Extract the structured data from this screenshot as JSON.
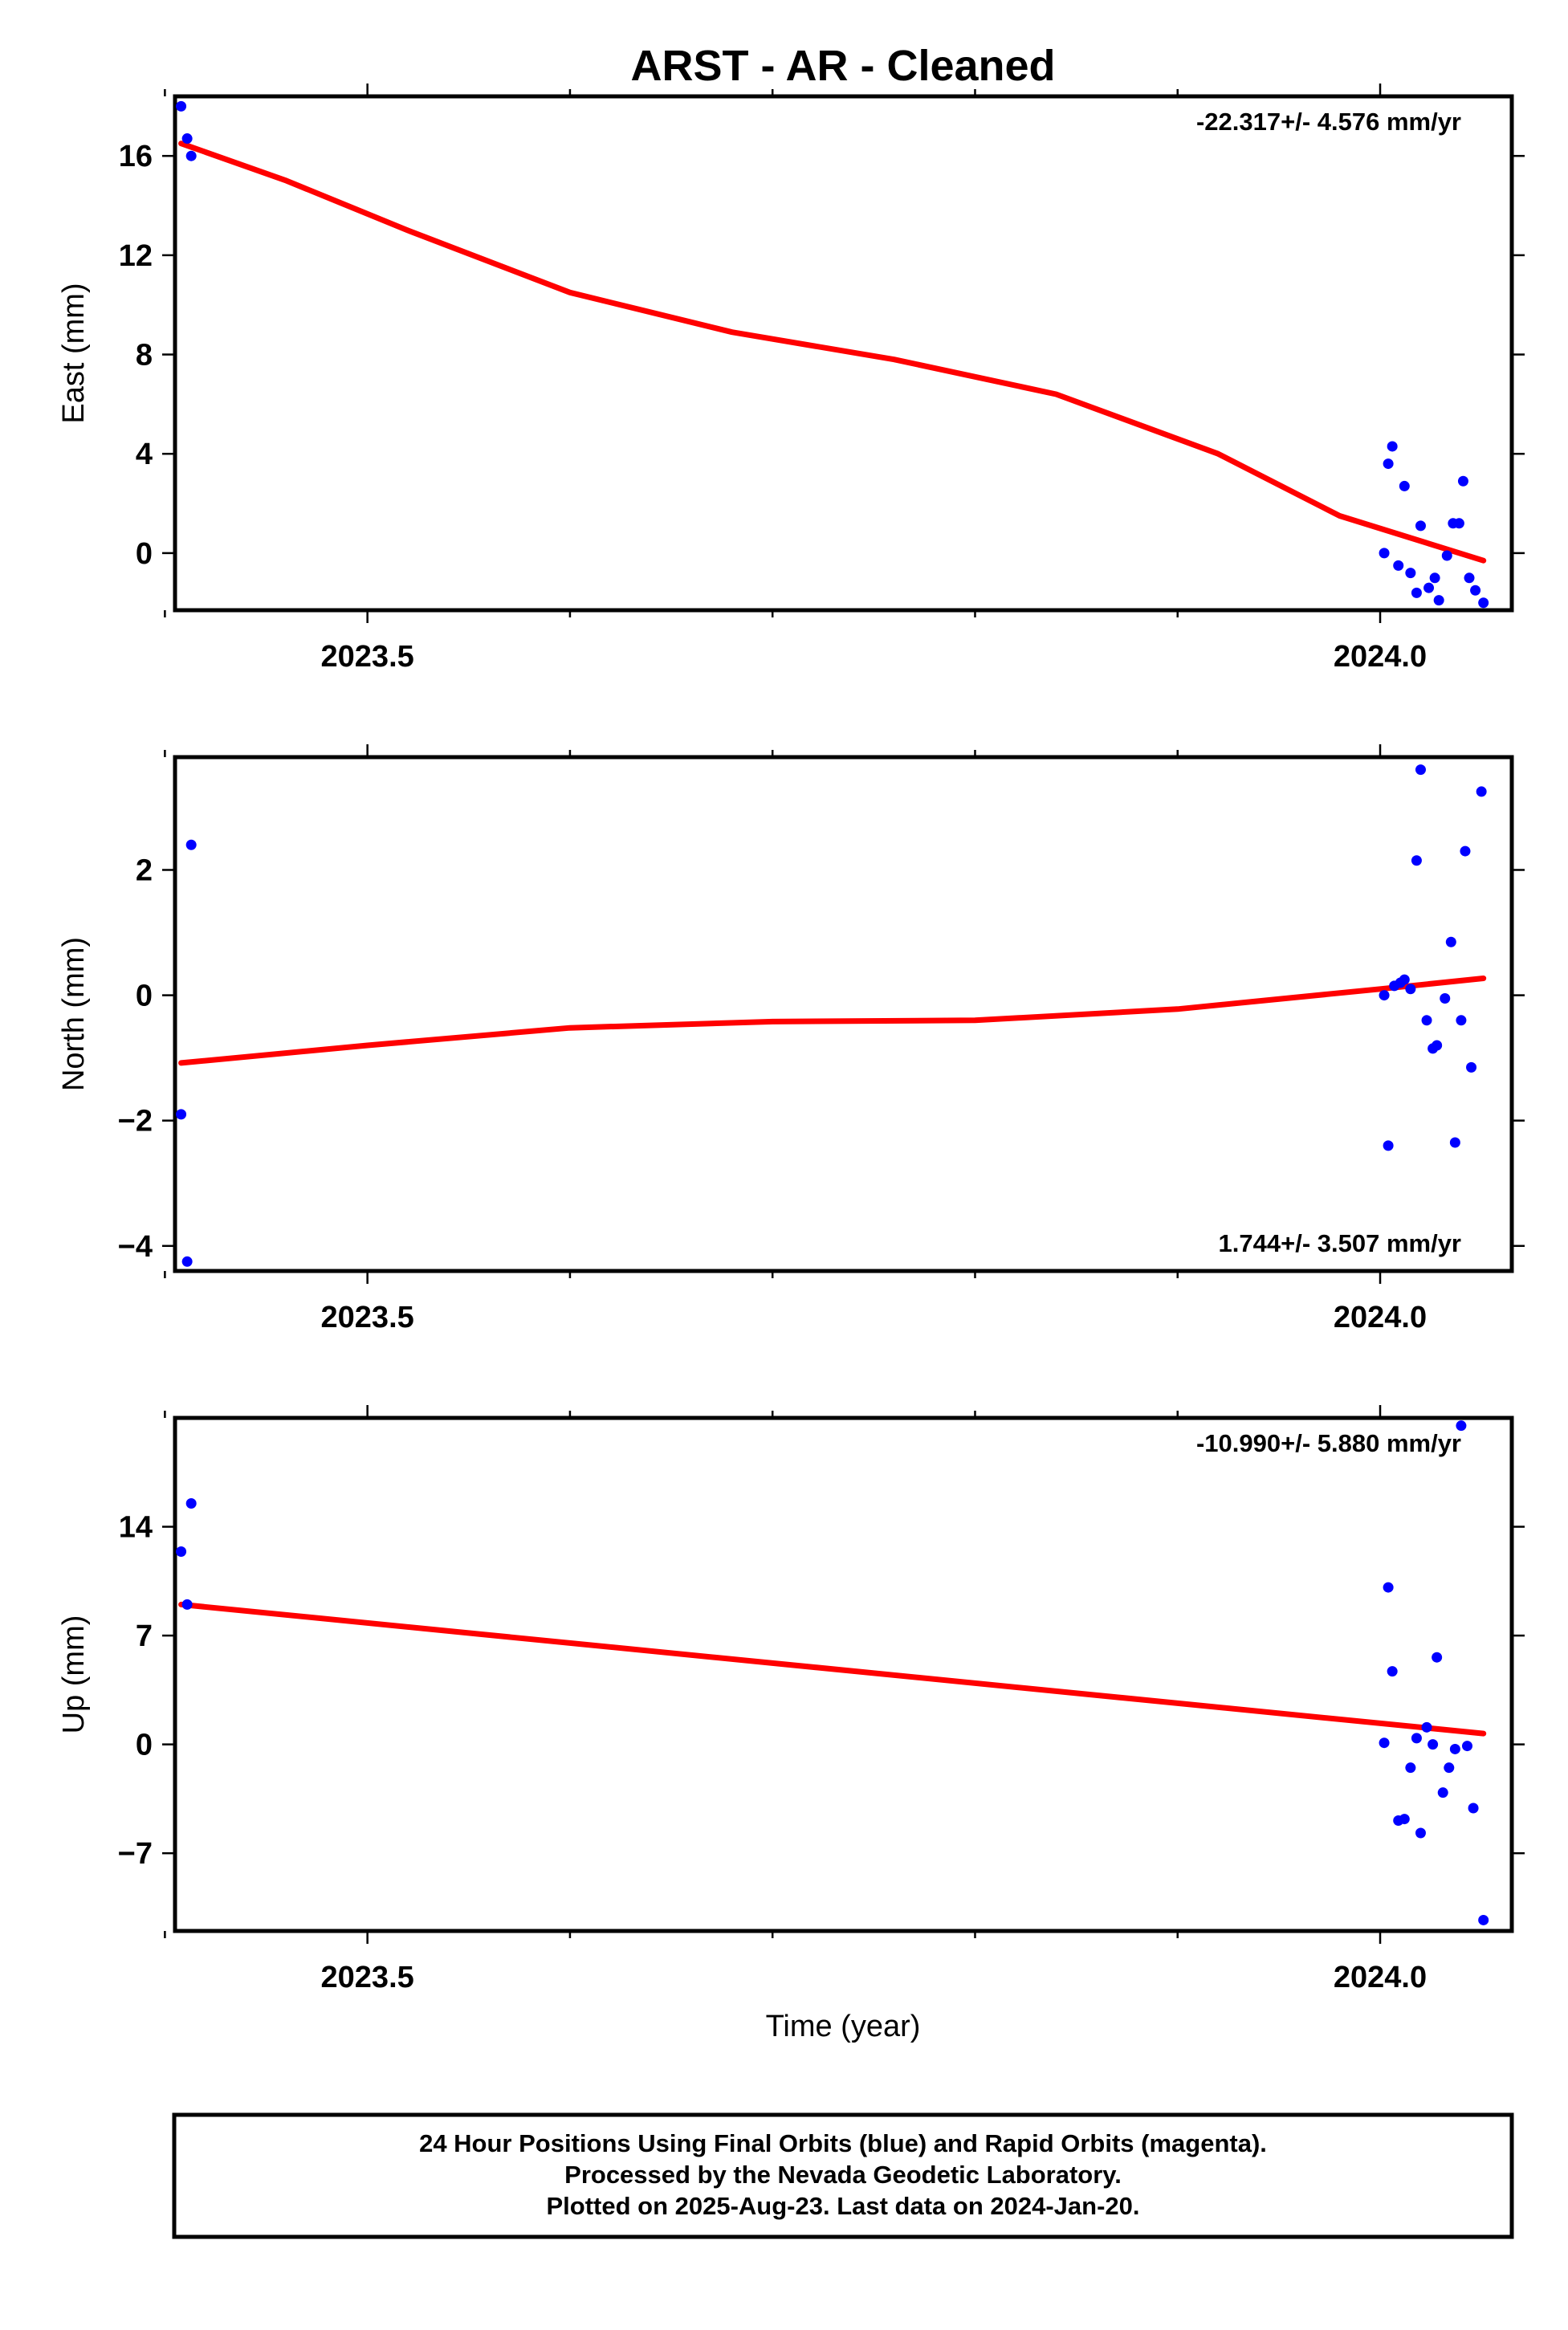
{
  "chart_data": {
    "title": "ARST  - AR - Cleaned",
    "xlabel": "Time (year)",
    "x_tick_labels": [
      "2023.5",
      "2024.0"
    ],
    "xlim": [
      2023.405,
      2024.065
    ],
    "type": "scatter",
    "colors": {
      "final_orbits": "#0000ff",
      "model": "#ff0000"
    },
    "panels": [
      {
        "name": "east",
        "ylabel": "East (mm)",
        "ylim": [
          -2.3,
          18.4
        ],
        "yticks": [
          0,
          4,
          8,
          12,
          16
        ],
        "rate_text": "-22.317+/- 4.576 mm/yr",
        "rate_position": "top-right",
        "points": [
          [
            2023.408,
            18.0
          ],
          [
            2023.411,
            16.7
          ],
          [
            2023.413,
            16.0
          ],
          [
            2024.002,
            0.0
          ],
          [
            2024.004,
            3.6
          ],
          [
            2024.006,
            4.3
          ],
          [
            2024.009,
            -0.5
          ],
          [
            2024.012,
            2.7
          ],
          [
            2024.015,
            -0.8
          ],
          [
            2024.018,
            -1.6
          ],
          [
            2024.02,
            1.1
          ],
          [
            2024.024,
            -1.4
          ],
          [
            2024.027,
            -1.0
          ],
          [
            2024.029,
            -1.9
          ],
          [
            2024.033,
            -0.1
          ],
          [
            2024.036,
            1.2
          ],
          [
            2024.039,
            1.2
          ],
          [
            2024.041,
            2.9
          ],
          [
            2024.044,
            -1.0
          ],
          [
            2024.047,
            -1.5
          ],
          [
            2024.051,
            -2.0
          ]
        ],
        "model": [
          [
            2023.408,
            16.5
          ],
          [
            2023.46,
            15.0
          ],
          [
            2023.52,
            13.0
          ],
          [
            2023.6,
            10.5
          ],
          [
            2023.68,
            8.9
          ],
          [
            2023.76,
            7.8
          ],
          [
            2023.84,
            6.4
          ],
          [
            2023.92,
            4.0
          ],
          [
            2023.98,
            1.5
          ],
          [
            2024.051,
            -0.3
          ]
        ]
      },
      {
        "name": "north",
        "ylabel": "North (mm)",
        "ylim": [
          -4.4,
          3.8
        ],
        "yticks": [
          -4,
          -2,
          0,
          2
        ],
        "rate_text": "1.744+/- 3.507 mm/yr",
        "rate_position": "bottom-right",
        "points": [
          [
            2023.408,
            -1.9
          ],
          [
            2023.411,
            -4.25
          ],
          [
            2023.413,
            2.4
          ],
          [
            2024.002,
            0.0
          ],
          [
            2024.004,
            -2.4
          ],
          [
            2024.007,
            0.15
          ],
          [
            2024.01,
            0.2
          ],
          [
            2024.012,
            0.25
          ],
          [
            2024.015,
            0.1
          ],
          [
            2024.018,
            2.15
          ],
          [
            2024.02,
            3.6
          ],
          [
            2024.023,
            -0.4
          ],
          [
            2024.026,
            -0.85
          ],
          [
            2024.028,
            -0.8
          ],
          [
            2024.032,
            -0.05
          ],
          [
            2024.035,
            0.85
          ],
          [
            2024.037,
            -2.35
          ],
          [
            2024.04,
            -0.4
          ],
          [
            2024.042,
            2.3
          ],
          [
            2024.045,
            -1.15
          ],
          [
            2024.05,
            3.25
          ]
        ],
        "model": [
          [
            2023.408,
            -1.08
          ],
          [
            2023.5,
            -0.8
          ],
          [
            2023.6,
            -0.52
          ],
          [
            2023.7,
            -0.42
          ],
          [
            2023.8,
            -0.4
          ],
          [
            2023.9,
            -0.22
          ],
          [
            2024.0,
            0.1
          ],
          [
            2024.051,
            0.27
          ]
        ]
      },
      {
        "name": "up",
        "ylabel": "Up (mm)",
        "ylim": [
          -12.0,
          21.0
        ],
        "yticks": [
          -7,
          0,
          7,
          14
        ],
        "rate_text": "-10.990+/- 5.880 mm/yr",
        "rate_position": "top-right",
        "points": [
          [
            2023.408,
            12.4
          ],
          [
            2023.411,
            9.0
          ],
          [
            2023.413,
            15.5
          ],
          [
            2024.002,
            0.1
          ],
          [
            2024.004,
            10.1
          ],
          [
            2024.006,
            4.7
          ],
          [
            2024.009,
            -4.9
          ],
          [
            2024.012,
            -4.8
          ],
          [
            2024.015,
            -1.5
          ],
          [
            2024.018,
            0.4
          ],
          [
            2024.02,
            -5.7
          ],
          [
            2024.023,
            1.1
          ],
          [
            2024.026,
            0.0
          ],
          [
            2024.028,
            5.6
          ],
          [
            2024.031,
            -3.1
          ],
          [
            2024.034,
            -1.5
          ],
          [
            2024.037,
            -0.3
          ],
          [
            2024.04,
            20.5
          ],
          [
            2024.043,
            -0.1
          ],
          [
            2024.046,
            -4.1
          ],
          [
            2024.051,
            -11.3
          ]
        ],
        "model": [
          [
            2023.408,
            9.0
          ],
          [
            2024.051,
            0.7
          ]
        ]
      }
    ]
  },
  "footer": {
    "line1": "24 Hour Positions Using Final Orbits (blue) and Rapid Orbits (magenta).",
    "line2": "Processed by the Nevada Geodetic Laboratory.",
    "line3": "Plotted on 2025-Aug-23. Last data on 2024-Jan-20."
  }
}
